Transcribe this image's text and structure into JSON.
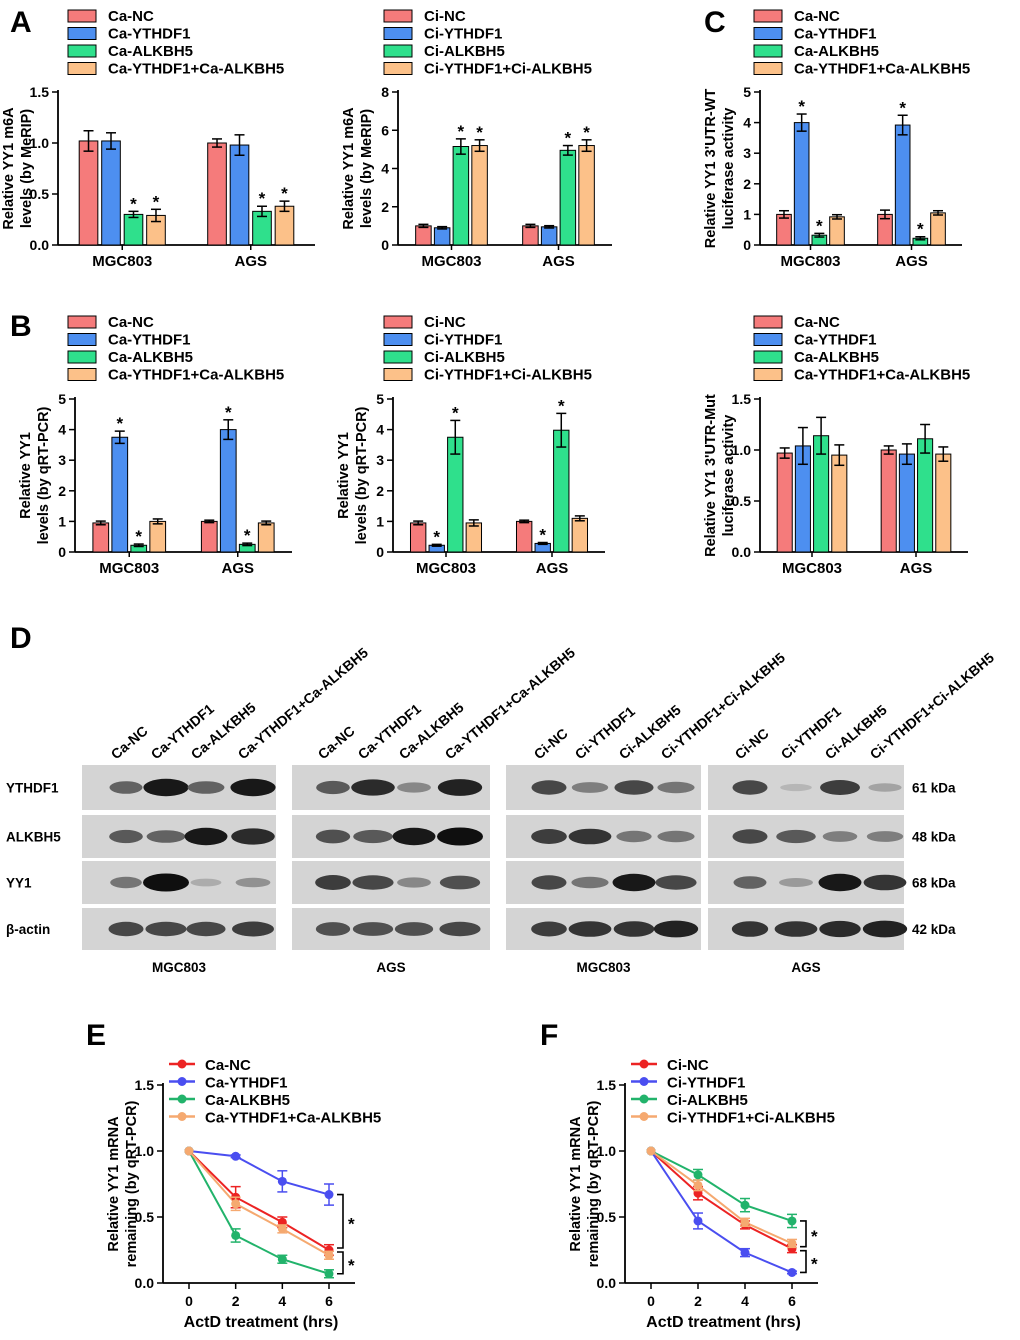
{
  "palette": {
    "red": "#f57b7b",
    "blue": "#4d8ff0",
    "green": "#2fe08c",
    "orange": "#fcc189",
    "line_red": "#ec2323",
    "line_blue": "#4a4ef0",
    "line_green": "#22b36b",
    "line_orange": "#f5a970"
  },
  "chart_data": [
    {
      "id": "A-left",
      "panel_label": "A",
      "type": "bar",
      "ylabel_lines": [
        "Relative YY1 m6A",
        "levels (by MeRIP)"
      ],
      "ylim": [
        0,
        1.5
      ],
      "yticks": [
        "0.0",
        "0.5",
        "1.0",
        "1.5"
      ],
      "categories": [
        "MGC803",
        "AGS"
      ],
      "series": [
        {
          "name": "Ca-NC",
          "values": [
            1.02,
            1.0
          ],
          "errors": [
            0.1,
            0.04
          ],
          "sig": [
            false,
            false
          ]
        },
        {
          "name": "Ca-YTHDF1",
          "values": [
            1.02,
            0.98
          ],
          "errors": [
            0.08,
            0.1
          ],
          "sig": [
            false,
            false
          ]
        },
        {
          "name": "Ca-ALKBH5",
          "values": [
            0.3,
            0.33
          ],
          "errors": [
            0.03,
            0.05
          ],
          "sig": [
            true,
            true
          ]
        },
        {
          "name": "Ca-YTHDF1+Ca-ALKBH5",
          "values": [
            0.29,
            0.38
          ],
          "errors": [
            0.06,
            0.05
          ],
          "sig": [
            true,
            true
          ]
        }
      ]
    },
    {
      "id": "A-right",
      "panel_label": "",
      "type": "bar",
      "ylabel_lines": [
        "Relative YY1 m6A",
        "levels (by MeRIP)"
      ],
      "ylim": [
        0,
        8
      ],
      "yticks": [
        "0",
        "2",
        "4",
        "6",
        "8"
      ],
      "categories": [
        "MGC803",
        "AGS"
      ],
      "series": [
        {
          "name": "Ci-NC",
          "values": [
            1.0,
            1.0
          ],
          "errors": [
            0.08,
            0.08
          ],
          "sig": [
            false,
            false
          ]
        },
        {
          "name": "Ci-YTHDF1",
          "values": [
            0.9,
            0.95
          ],
          "errors": [
            0.06,
            0.06
          ],
          "sig": [
            false,
            false
          ]
        },
        {
          "name": "Ci-ALKBH5",
          "values": [
            5.15,
            4.95
          ],
          "errors": [
            0.4,
            0.25
          ],
          "sig": [
            true,
            true
          ]
        },
        {
          "name": "Ci-YTHDF1+Ci-ALKBH5",
          "values": [
            5.2,
            5.2
          ],
          "errors": [
            0.3,
            0.3
          ],
          "sig": [
            true,
            true
          ]
        }
      ]
    },
    {
      "id": "C-top",
      "panel_label": "C",
      "type": "bar",
      "ylabel_lines": [
        "Relative YY1 3'UTR-WT",
        "luciferase activity"
      ],
      "ylim": [
        0,
        5
      ],
      "yticks": [
        "0",
        "1",
        "2",
        "3",
        "4",
        "5"
      ],
      "categories": [
        "MGC803",
        "AGS"
      ],
      "series": [
        {
          "name": "Ca-NC",
          "values": [
            1.0,
            1.0
          ],
          "errors": [
            0.12,
            0.14
          ],
          "sig": [
            false,
            false
          ]
        },
        {
          "name": "Ca-YTHDF1",
          "values": [
            4.0,
            3.92
          ],
          "errors": [
            0.28,
            0.32
          ],
          "sig": [
            true,
            true
          ]
        },
        {
          "name": "Ca-ALKBH5",
          "values": [
            0.32,
            0.22
          ],
          "errors": [
            0.06,
            0.05
          ],
          "sig": [
            true,
            true
          ]
        },
        {
          "name": "Ca-YTHDF1+Ca-ALKBH5",
          "values": [
            0.92,
            1.05
          ],
          "errors": [
            0.07,
            0.07
          ],
          "sig": [
            false,
            false
          ]
        }
      ]
    },
    {
      "id": "B-left",
      "panel_label": "B",
      "type": "bar",
      "ylabel_lines": [
        "Relative YY1",
        "levels (by qRT-PCR)"
      ],
      "ylim": [
        0,
        5
      ],
      "yticks": [
        "0",
        "1",
        "2",
        "3",
        "4",
        "5"
      ],
      "categories": [
        "MGC803",
        "AGS"
      ],
      "series": [
        {
          "name": "Ca-NC",
          "values": [
            0.95,
            1.0
          ],
          "errors": [
            0.06,
            0.04
          ],
          "sig": [
            false,
            false
          ]
        },
        {
          "name": "Ca-YTHDF1",
          "values": [
            3.75,
            4.0
          ],
          "errors": [
            0.2,
            0.32
          ],
          "sig": [
            true,
            true
          ]
        },
        {
          "name": "Ca-ALKBH5",
          "values": [
            0.22,
            0.25
          ],
          "errors": [
            0.04,
            0.04
          ],
          "sig": [
            true,
            true
          ]
        },
        {
          "name": "Ca-YTHDF1+Ca-ALKBH5",
          "values": [
            1.0,
            0.95
          ],
          "errors": [
            0.08,
            0.06
          ],
          "sig": [
            false,
            false
          ]
        }
      ]
    },
    {
      "id": "B-right",
      "panel_label": "",
      "type": "bar",
      "ylabel_lines": [
        "Relative YY1",
        "levels (by qRT-PCR)"
      ],
      "ylim": [
        0,
        5
      ],
      "yticks": [
        "0",
        "1",
        "2",
        "3",
        "4",
        "5"
      ],
      "categories": [
        "MGC803",
        "AGS"
      ],
      "series": [
        {
          "name": "Ci-NC",
          "values": [
            0.95,
            1.0
          ],
          "errors": [
            0.06,
            0.04
          ],
          "sig": [
            false,
            false
          ]
        },
        {
          "name": "Ci-YTHDF1",
          "values": [
            0.22,
            0.28
          ],
          "errors": [
            0.03,
            0.03
          ],
          "sig": [
            true,
            true
          ]
        },
        {
          "name": "Ci-ALKBH5",
          "values": [
            3.75,
            3.98
          ],
          "errors": [
            0.55,
            0.55
          ],
          "sig": [
            true,
            true
          ]
        },
        {
          "name": "Ci-YTHDF1+Ci-ALKBH5",
          "values": [
            0.95,
            1.1
          ],
          "errors": [
            0.1,
            0.08
          ],
          "sig": [
            false,
            false
          ]
        }
      ]
    },
    {
      "id": "C-bottom",
      "panel_label": "",
      "type": "bar",
      "ylabel_lines": [
        "Relative YY1 3'UTR-Mut",
        "luciferase activity"
      ],
      "ylim": [
        0,
        1.5
      ],
      "yticks": [
        "0.0",
        "0.5",
        "1.0",
        "1.5"
      ],
      "categories": [
        "MGC803",
        "AGS"
      ],
      "series": [
        {
          "name": "Ca-NC",
          "values": [
            0.97,
            1.0
          ],
          "errors": [
            0.05,
            0.04
          ],
          "sig": [
            false,
            false
          ]
        },
        {
          "name": "Ca-YTHDF1",
          "values": [
            1.04,
            0.96
          ],
          "errors": [
            0.18,
            0.1
          ],
          "sig": [
            false,
            false
          ]
        },
        {
          "name": "Ca-ALKBH5",
          "values": [
            1.14,
            1.11
          ],
          "errors": [
            0.18,
            0.14
          ],
          "sig": [
            false,
            false
          ]
        },
        {
          "name": "Ca-YTHDF1+Ca-ALKBH5",
          "values": [
            0.95,
            0.96
          ],
          "errors": [
            0.1,
            0.07
          ],
          "sig": [
            false,
            false
          ]
        }
      ]
    },
    {
      "id": "E",
      "panel_label": "E",
      "type": "line",
      "ylabel_lines": [
        "Relative YY1 mRNA",
        "remaining (by qRT-PCR)"
      ],
      "xlabel": "ActD treatment (hrs)",
      "x": [
        0,
        2,
        4,
        6
      ],
      "xticks": [
        "0",
        "2",
        "4",
        "6"
      ],
      "ylim": [
        0,
        1.5
      ],
      "yticks": [
        "0.0",
        "0.5",
        "1.0",
        "1.5"
      ],
      "series": [
        {
          "name": "Ca-NC",
          "values": [
            1.0,
            0.65,
            0.46,
            0.25
          ],
          "errors": [
            0,
            0.08,
            0.04,
            0.04
          ]
        },
        {
          "name": "Ca-YTHDF1",
          "values": [
            1.0,
            0.96,
            0.77,
            0.67
          ],
          "errors": [
            0,
            0.01,
            0.08,
            0.08
          ]
        },
        {
          "name": "Ca-ALKBH5",
          "values": [
            1.0,
            0.36,
            0.18,
            0.07
          ],
          "errors": [
            0,
            0.05,
            0.03,
            0.03
          ]
        },
        {
          "name": "Ca-YTHDF1+Ca-ALKBH5",
          "values": [
            1.0,
            0.6,
            0.41,
            0.21
          ],
          "errors": [
            0,
            0.05,
            0.03,
            0.03
          ]
        }
      ],
      "brackets": [
        {
          "label": "*",
          "from": 0.67,
          "to": 0.25
        },
        {
          "label": "*",
          "from": 0.25,
          "to": 0.07
        }
      ]
    },
    {
      "id": "F",
      "panel_label": "F",
      "type": "line",
      "ylabel_lines": [
        "Relative YY1 mRNA",
        "remaining (by qRT-PCR)"
      ],
      "xlabel": "ActD treatment (hrs)",
      "x": [
        0,
        2,
        4,
        6
      ],
      "xticks": [
        "0",
        "2",
        "4",
        "6"
      ],
      "ylim": [
        0,
        1.5
      ],
      "yticks": [
        "0.0",
        "0.5",
        "1.0",
        "1.5"
      ],
      "series": [
        {
          "name": "Ci-NC",
          "values": [
            1.0,
            0.68,
            0.44,
            0.26
          ],
          "errors": [
            0,
            0.05,
            0.03,
            0.03
          ]
        },
        {
          "name": "Ci-YTHDF1",
          "values": [
            1.0,
            0.47,
            0.23,
            0.08
          ],
          "errors": [
            0,
            0.06,
            0.03,
            0.01
          ]
        },
        {
          "name": "Ci-ALKBH5",
          "values": [
            1.0,
            0.82,
            0.59,
            0.47
          ],
          "errors": [
            0,
            0.04,
            0.05,
            0.05
          ]
        },
        {
          "name": "Ci-YTHDF1+Ci-ALKBH5",
          "values": [
            1.0,
            0.74,
            0.46,
            0.3
          ],
          "errors": [
            0,
            0.04,
            0.03,
            0.03
          ]
        }
      ],
      "brackets": [
        {
          "label": "*",
          "from": 0.47,
          "to": 0.26
        },
        {
          "label": "*",
          "from": 0.26,
          "to": 0.08
        }
      ]
    }
  ],
  "western_blot": {
    "panel_label": "D",
    "groups": [
      {
        "cell_line": "MGC803",
        "lanes": [
          "Ca-NC",
          "Ca-YTHDF1",
          "Ca-ALKBH5",
          "Ca-YTHDF1+Ca-ALKBH5"
        ]
      },
      {
        "cell_line": "AGS",
        "lanes": [
          "Ca-NC",
          "Ca-YTHDF1",
          "Ca-ALKBH5",
          "Ca-YTHDF1+Ca-ALKBH5"
        ]
      },
      {
        "cell_line": "MGC803",
        "lanes": [
          "Ci-NC",
          "Ci-YTHDF1",
          "Ci-ALKBH5",
          "Ci-YTHDF1+Ci-ALKBH5"
        ]
      },
      {
        "cell_line": "AGS",
        "lanes": [
          "Ci-NC",
          "Ci-YTHDF1",
          "Ci-ALKBH5",
          "Ci-YTHDF1+Ci-ALKBH5"
        ]
      }
    ],
    "proteins": [
      {
        "name": "YTHDF1",
        "size": "61 kDa",
        "intensity": [
          [
            0.55,
            0.95,
            0.55,
            0.95
          ],
          [
            0.6,
            0.85,
            0.35,
            0.9
          ],
          [
            0.7,
            0.4,
            0.7,
            0.45
          ],
          [
            0.7,
            0.1,
            0.75,
            0.2
          ]
        ]
      },
      {
        "name": "ALKBH5",
        "size": "48 kDa",
        "intensity": [
          [
            0.6,
            0.55,
            0.95,
            0.85
          ],
          [
            0.65,
            0.6,
            0.95,
            1.0
          ],
          [
            0.75,
            0.8,
            0.45,
            0.45
          ],
          [
            0.7,
            0.6,
            0.4,
            0.4
          ]
        ]
      },
      {
        "name": "YY1",
        "size": "68 kDa",
        "intensity": [
          [
            0.45,
            1.0,
            0.15,
            0.3
          ],
          [
            0.75,
            0.7,
            0.35,
            0.65
          ],
          [
            0.7,
            0.45,
            0.95,
            0.7
          ],
          [
            0.55,
            0.25,
            0.95,
            0.8
          ]
        ]
      },
      {
        "name": "β-actin",
        "size": "42 kDa",
        "intensity": [
          [
            0.7,
            0.7,
            0.7,
            0.75
          ],
          [
            0.65,
            0.65,
            0.65,
            0.7
          ],
          [
            0.75,
            0.8,
            0.8,
            0.9
          ],
          [
            0.8,
            0.8,
            0.85,
            0.9
          ]
        ]
      }
    ]
  }
}
